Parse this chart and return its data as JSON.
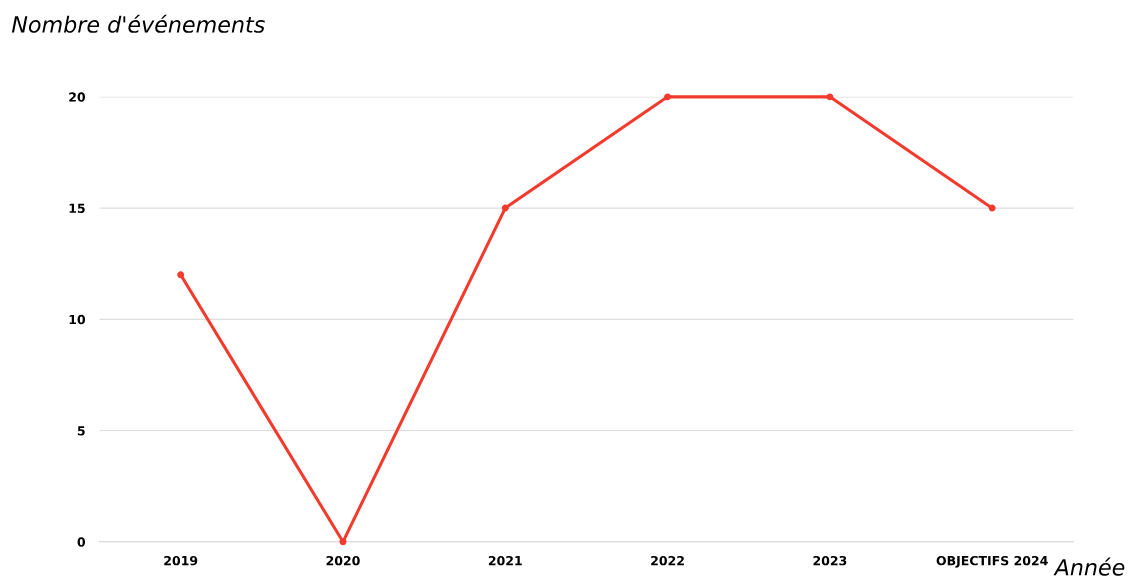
{
  "chart_data": {
    "type": "line",
    "xlabel": "Année",
    "ylabel": "Nombre d'événements",
    "categories": [
      "2019",
      "2020",
      "2021",
      "2022",
      "2023",
      "OBJECTIFS 2024"
    ],
    "series": [
      {
        "color": "#f23b2c",
        "values": [
          12,
          0,
          15,
          20,
          20,
          15
        ]
      }
    ],
    "ylim": [
      0,
      20
    ],
    "yticks": [
      0,
      5,
      10,
      15,
      20
    ],
    "grid": "y",
    "marker": "circle",
    "line_style": "solid"
  }
}
